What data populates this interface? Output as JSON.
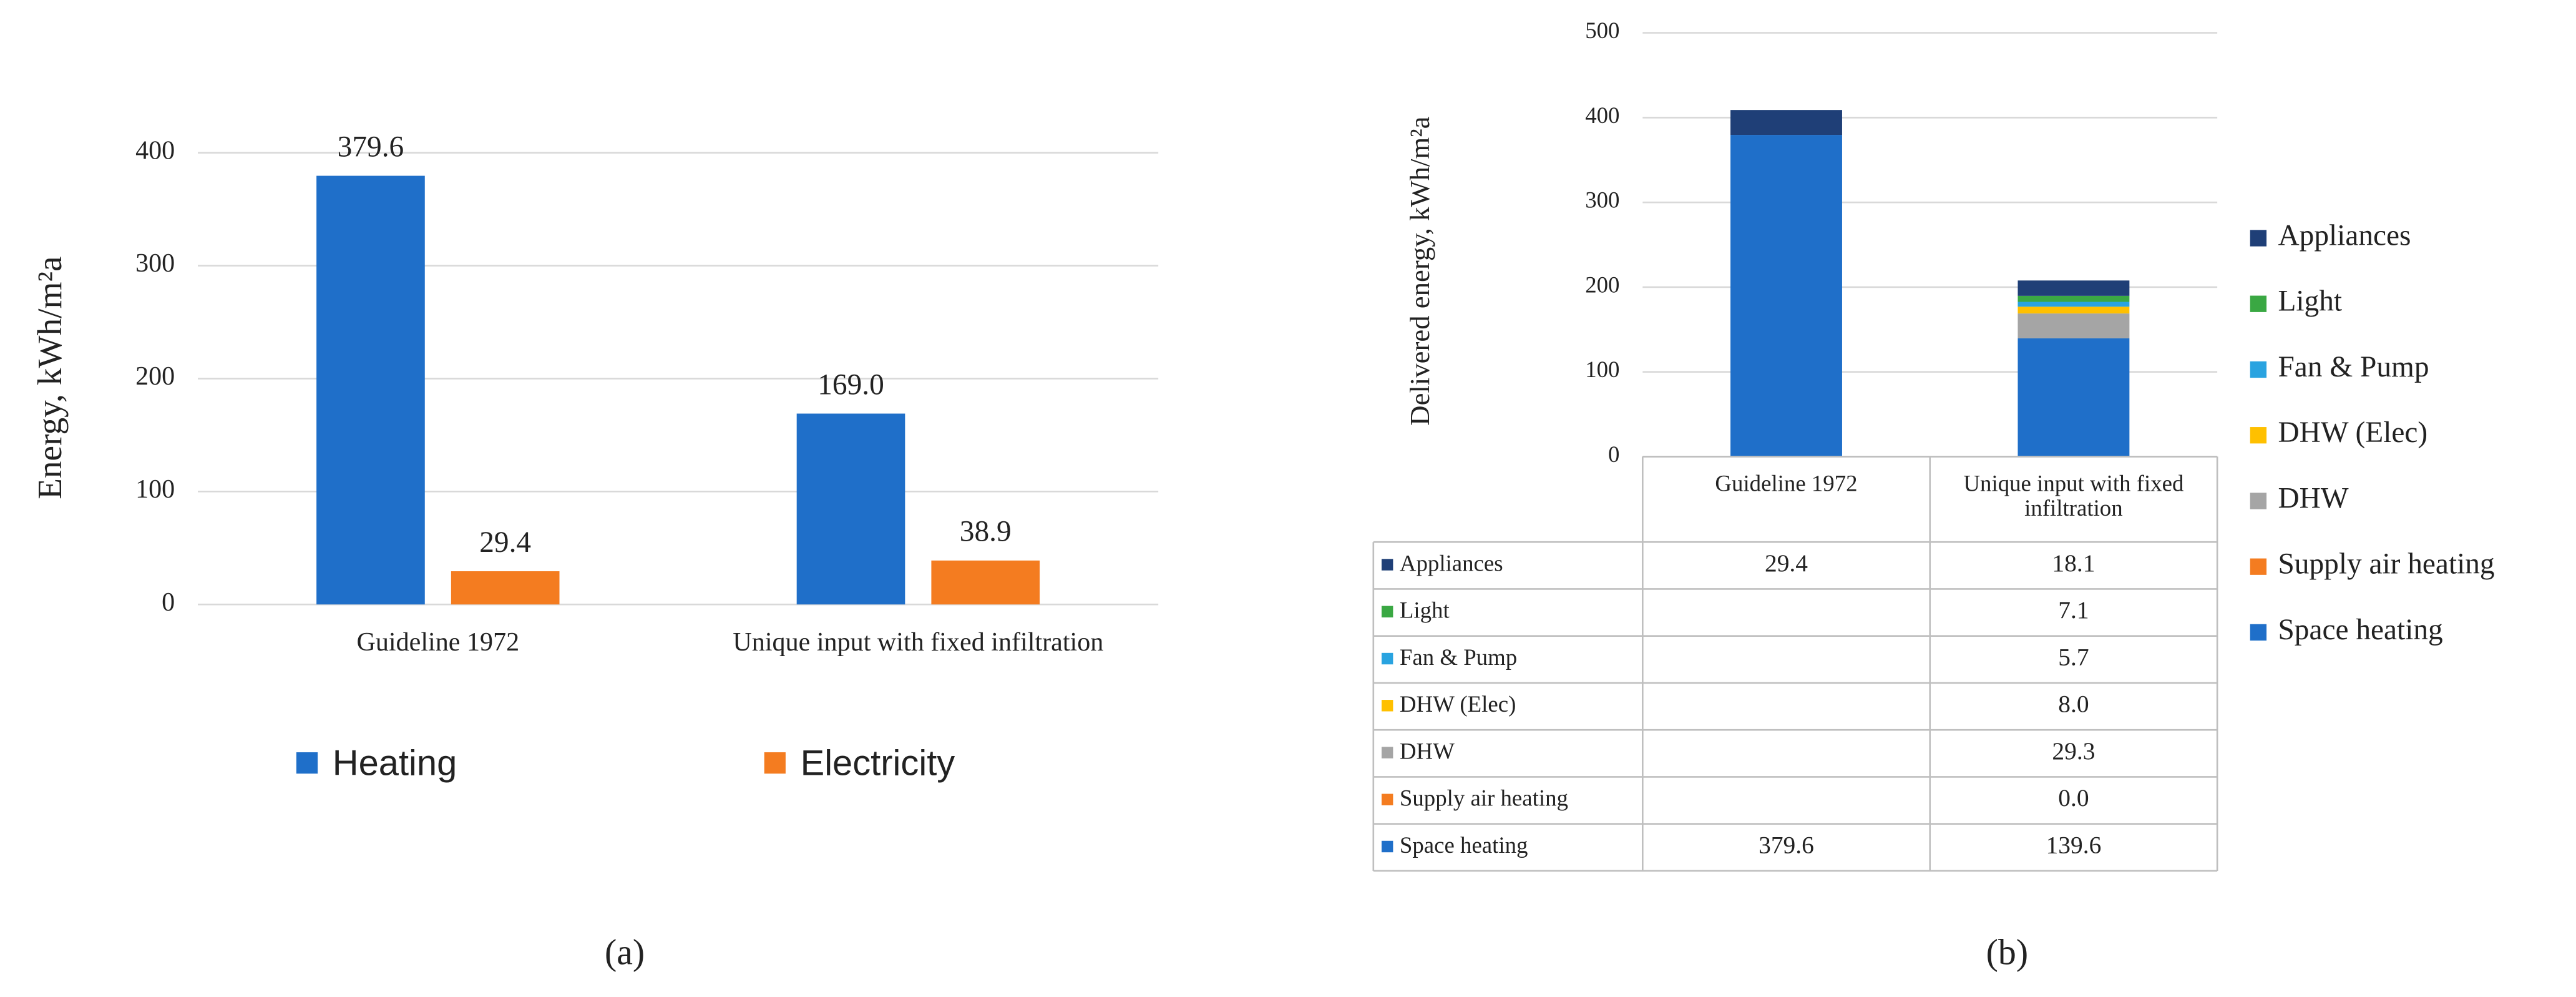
{
  "chart_data": [
    {
      "type": "bar",
      "caption": "(a)",
      "y_label": "Energy, kWh/m²a",
      "categories": [
        "Guideline 1972",
        "Unique input with fixed infiltration"
      ],
      "series": [
        {
          "name": "Heating",
          "color": "#1f6fc9",
          "values": [
            379.6,
            169.0
          ],
          "value_labels": [
            "379.6",
            "169.0"
          ]
        },
        {
          "name": "Electricity",
          "color": "#f47c20",
          "values": [
            29.4,
            38.9
          ]
        }
      ],
      "ylim": [
        0,
        400
      ],
      "yticks": [
        0,
        100,
        200,
        300,
        400
      ],
      "grid": true,
      "legend": "bottom"
    },
    {
      "type": "bar",
      "stacked": true,
      "data_table": true,
      "caption": "(b)",
      "y_label": "Delivered energy, kWh/m²a",
      "categories": [
        "Guideline 1972",
        "Unique input with fixed infiltration"
      ],
      "series": [
        {
          "name": "Space heating",
          "color": "#1f6fc9",
          "values": [
            379.6,
            139.6
          ],
          "value_labels": [
            "379.6",
            "139.6"
          ]
        },
        {
          "name": "Supply air heating",
          "color": "#f47c20",
          "values": [
            null,
            0.0
          ],
          "value_labels": [
            null,
            "0.0"
          ]
        },
        {
          "name": "DHW",
          "color": "#a5a5a5",
          "values": [
            null,
            29.3
          ],
          "value_labels": [
            null,
            "29.3"
          ]
        },
        {
          "name": "DHW (Elec)",
          "color": "#ffc000",
          "values": [
            null,
            8.0
          ],
          "value_labels": [
            null,
            "8.0"
          ]
        },
        {
          "name": "Fan & Pump",
          "color": "#29a3e0",
          "values": [
            null,
            5.7
          ],
          "value_labels": [
            null,
            "5.7"
          ]
        },
        {
          "name": "Light",
          "color": "#3aa843",
          "values": [
            null,
            7.1
          ],
          "value_labels": [
            null,
            "7.1"
          ]
        },
        {
          "name": "Appliances",
          "color": "#1f3f77",
          "values": [
            29.4,
            18.1
          ],
          "value_labels": [
            "29.4",
            "18.1"
          ]
        }
      ],
      "ylim": [
        0,
        500
      ],
      "yticks": [
        0,
        100,
        200,
        300,
        400,
        500
      ],
      "grid": true,
      "legend": "right"
    }
  ]
}
